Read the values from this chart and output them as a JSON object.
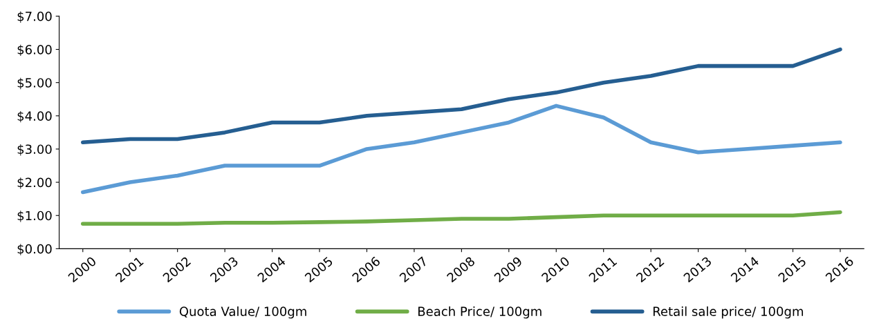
{
  "chart_data": {
    "type": "line",
    "categories": [
      "2000",
      "2001",
      "2002",
      "2003",
      "2004",
      "2005",
      "2006",
      "2007",
      "2008",
      "2009",
      "2010",
      "2011",
      "2012",
      "2013",
      "2014",
      "2015",
      "2016"
    ],
    "series": [
      {
        "name": "Quota Value/ 100gm",
        "color": "#5b9bd5",
        "values": [
          1.7,
          2.0,
          2.2,
          2.5,
          2.5,
          2.5,
          3.0,
          3.2,
          3.5,
          3.8,
          4.3,
          3.95,
          3.2,
          2.9,
          3.0,
          3.1,
          3.2
        ]
      },
      {
        "name": "Beach Price/ 100gm",
        "color": "#70ad47",
        "values": [
          0.75,
          0.75,
          0.75,
          0.78,
          0.78,
          0.8,
          0.82,
          0.86,
          0.9,
          0.9,
          0.95,
          1.0,
          1.0,
          1.0,
          1.0,
          1.0,
          1.1
        ]
      },
      {
        "name": "Retail sale price/ 100gm",
        "color": "#255e91",
        "values": [
          3.2,
          3.3,
          3.3,
          3.5,
          3.8,
          3.8,
          4.0,
          4.1,
          4.2,
          4.5,
          4.7,
          5.0,
          5.2,
          5.5,
          5.5,
          5.5,
          6.0
        ]
      }
    ],
    "ylim": [
      0,
      7
    ],
    "yticks": [
      {
        "value": 0,
        "label": "$0.00"
      },
      {
        "value": 1,
        "label": "$1.00"
      },
      {
        "value": 2,
        "label": "$2.00"
      },
      {
        "value": 3,
        "label": "$3.00"
      },
      {
        "value": 4,
        "label": "$4.00"
      },
      {
        "value": 5,
        "label": "$5.00"
      },
      {
        "value": 6,
        "label": "$6.00"
      },
      {
        "value": 7,
        "label": "$7.00"
      }
    ],
    "grid": false,
    "legend": "bottom",
    "marker": "none",
    "line_style": "solid"
  }
}
